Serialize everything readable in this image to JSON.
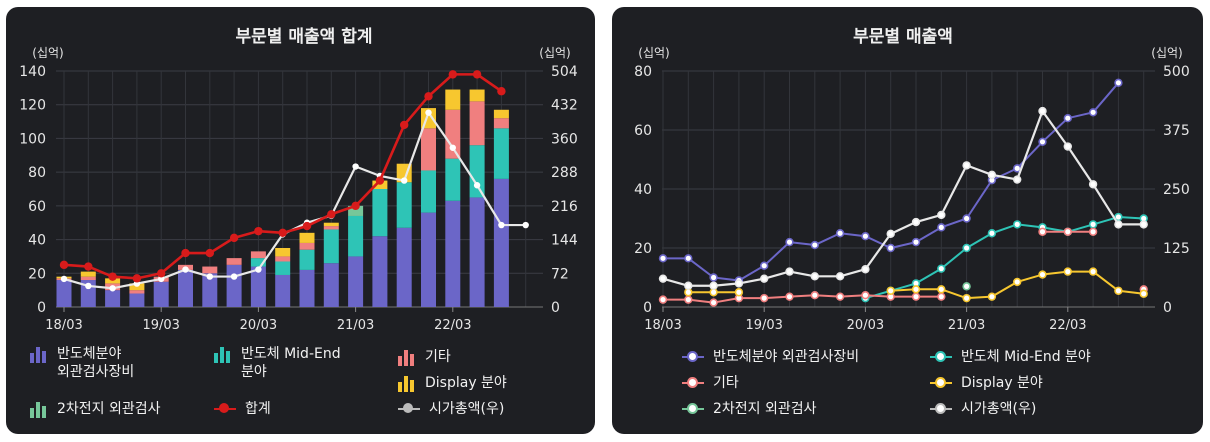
{
  "charts": [
    {
      "title": "부문별 매출액 합계",
      "left_unit": "(십억)",
      "right_unit": "(십억)"
    },
    {
      "title": "부문별 매출액",
      "left_unit": "(십억)",
      "right_unit": "(십억)"
    }
  ],
  "chart_data": [
    {
      "type": "bar",
      "title": "부문별 매출액 합계",
      "ylabel": "(십억)",
      "y2label": "(십억)",
      "ylim": [
        0,
        140
      ],
      "y2lim": [
        0,
        504
      ],
      "yticks": [
        0,
        20,
        40,
        60,
        80,
        100,
        120,
        140
      ],
      "y2ticks": [
        0,
        72,
        144,
        216,
        288,
        360,
        432,
        504
      ],
      "xtick_labels": [
        "18/03",
        "19/03",
        "20/03",
        "21/03",
        "22/03"
      ],
      "xtick_index": [
        0,
        4,
        8,
        12,
        16
      ],
      "categories": [
        "18/03",
        "18/06",
        "18/09",
        "18/12",
        "19/03",
        "19/06",
        "19/09",
        "19/12",
        "20/03",
        "20/06",
        "20/09",
        "20/12",
        "21/03",
        "21/06",
        "21/09",
        "21/12",
        "22/03",
        "22/06",
        "22/09",
        "22/12"
      ],
      "grid": true,
      "stacked": true,
      "series": [
        {
          "name": "반도체분야 외관검사장비",
          "kind": "bar",
          "color": "#6b66c8",
          "values": [
            16,
            16,
            10,
            8,
            15,
            22,
            20,
            25,
            24,
            19,
            22,
            26,
            30,
            42,
            47,
            56,
            63,
            65,
            76,
            null
          ]
        },
        {
          "name": "반도체 Mid-End 분야",
          "kind": "bar",
          "color": "#2ec4b6",
          "values": [
            0,
            0,
            0,
            0,
            0,
            0,
            0,
            0,
            5,
            8,
            12,
            20,
            24,
            28,
            27,
            25,
            25,
            31,
            30,
            null
          ]
        },
        {
          "name": "기타",
          "kind": "bar",
          "color": "#f07f7f",
          "values": [
            1,
            2,
            4,
            2,
            3,
            3,
            4,
            4,
            4,
            3,
            4,
            2,
            0,
            0,
            0,
            25,
            29,
            26,
            6,
            null
          ]
        },
        {
          "name": "Display 분야",
          "kind": "bar",
          "color": "#f7c72f",
          "values": [
            1,
            3,
            3,
            4,
            0,
            0,
            0,
            0,
            0,
            5,
            6,
            2,
            0,
            5,
            11,
            12,
            12,
            7,
            5,
            null
          ]
        },
        {
          "name": "2차전지 외관검사",
          "kind": "bar",
          "color": "#77c79a",
          "values": [
            0,
            0,
            0,
            0,
            0,
            0,
            0,
            0,
            0,
            0,
            0,
            0,
            6,
            0,
            0,
            0,
            0,
            0,
            0,
            null
          ]
        },
        {
          "name": "합계",
          "kind": "line",
          "axis": "left",
          "color": "#d81b1b",
          "values": [
            25,
            24,
            18,
            17,
            20,
            32,
            32,
            41,
            45,
            44,
            48,
            55,
            60,
            75,
            108,
            125,
            138,
            138,
            128,
            null
          ]
        },
        {
          "name": "시가총액(우)",
          "kind": "line",
          "axis": "right",
          "color": "#e8e8e8",
          "values": [
            60,
            45,
            40,
            50,
            60,
            80,
            65,
            65,
            80,
            155,
            180,
            195,
            300,
            280,
            270,
            415,
            340,
            260,
            175,
            175
          ]
        }
      ]
    },
    {
      "type": "line",
      "title": "부문별 매출액",
      "ylabel": "(십억)",
      "y2label": "(십억)",
      "ylim": [
        0,
        80
      ],
      "y2lim": [
        0,
        500
      ],
      "yticks": [
        0,
        20,
        40,
        60,
        80
      ],
      "y2ticks": [
        0,
        125,
        250,
        375,
        500
      ],
      "xtick_labels": [
        "18/03",
        "19/03",
        "20/03",
        "21/03",
        "22/03"
      ],
      "xtick_index": [
        0,
        4,
        8,
        12,
        16
      ],
      "categories": [
        "18/03",
        "18/06",
        "18/09",
        "18/12",
        "19/03",
        "19/06",
        "19/09",
        "19/12",
        "20/03",
        "20/06",
        "20/09",
        "20/12",
        "21/03",
        "21/06",
        "21/09",
        "21/12",
        "22/03",
        "22/06",
        "22/09",
        "22/12"
      ],
      "grid": true,
      "series": [
        {
          "name": "반도체분야 외관검사장비",
          "axis": "left",
          "color": "#6b66c8",
          "values": [
            16.5,
            16.5,
            10,
            9,
            14,
            22,
            21,
            25,
            24,
            20,
            22,
            27,
            30,
            43,
            47,
            56,
            64,
            66,
            76,
            null
          ]
        },
        {
          "name": "반도체 Mid-End 분야",
          "axis": "left",
          "color": "#2ec4b6",
          "values": [
            null,
            null,
            null,
            null,
            null,
            null,
            null,
            null,
            3,
            5.5,
            8,
            13,
            20,
            25,
            28,
            27,
            25.5,
            28,
            30.5,
            30
          ]
        },
        {
          "name": "기타",
          "axis": "left",
          "color": "#f07f7f",
          "values": [
            2.5,
            2.5,
            1.5,
            3,
            3,
            3.5,
            4,
            3.5,
            4,
            3.5,
            3.5,
            3.5,
            null,
            null,
            null,
            25.5,
            25.5,
            25.5,
            null,
            6
          ]
        },
        {
          "name": "Display 분야",
          "axis": "left",
          "color": "#f7c72f",
          "values": [
            null,
            5,
            5,
            5,
            null,
            null,
            null,
            null,
            null,
            5.5,
            6,
            6,
            3,
            3.5,
            8.5,
            11,
            12,
            12,
            5.5,
            4.5
          ]
        },
        {
          "name": "2차전지 외관검사",
          "axis": "left",
          "color": "#77c79a",
          "values": [
            null,
            null,
            null,
            null,
            null,
            null,
            null,
            null,
            null,
            null,
            null,
            null,
            7,
            null,
            null,
            null,
            null,
            null,
            null,
            null
          ]
        },
        {
          "name": "시가총액(우)",
          "axis": "right",
          "color": "#e8e8e8",
          "values": [
            60,
            45,
            45,
            50,
            60,
            75,
            65,
            65,
            80,
            155,
            180,
            195,
            300,
            280,
            270,
            415,
            340,
            260,
            175,
            175
          ]
        }
      ]
    }
  ],
  "legend_left": [
    {
      "label": "반도체분야\n외관검사장비",
      "color": "#6b66c8",
      "icon": "bar-chart-icon"
    },
    {
      "label": "반도체 Mid-End\n분야",
      "color": "#2ec4b6",
      "icon": "bar-chart-icon"
    },
    {
      "label": "기타",
      "color": "#f07f7f",
      "icon": "bar-chart-icon"
    },
    {
      "label": "Display 분야",
      "color": "#f7c72f",
      "icon": "bar-chart-icon"
    },
    {
      "label": "2차전지 외관검사",
      "color": "#77c79a",
      "icon": "bar-chart-icon"
    },
    {
      "label": "합계",
      "color": "#d81b1b",
      "icon": "dot-line-icon"
    },
    {
      "label": "시가총액(우)",
      "color": "#bbbbbb",
      "icon": "dot-line-icon"
    }
  ],
  "legend_right": [
    {
      "label": "반도체분야 외관검사장비",
      "color": "#6b66c8",
      "icon": "ring-line-icon"
    },
    {
      "label": "반도체 Mid-End 분야",
      "color": "#2ec4b6",
      "icon": "ring-line-icon"
    },
    {
      "label": "기타",
      "color": "#f07f7f",
      "icon": "ring-line-icon"
    },
    {
      "label": "Display 분야",
      "color": "#f7c72f",
      "icon": "ring-line-icon"
    },
    {
      "label": "2차전지 외관검사",
      "color": "#77c79a",
      "icon": "ring-line-icon"
    },
    {
      "label": "시가총액(우)",
      "color": "#bbbbbb",
      "icon": "ring-line-icon"
    }
  ]
}
